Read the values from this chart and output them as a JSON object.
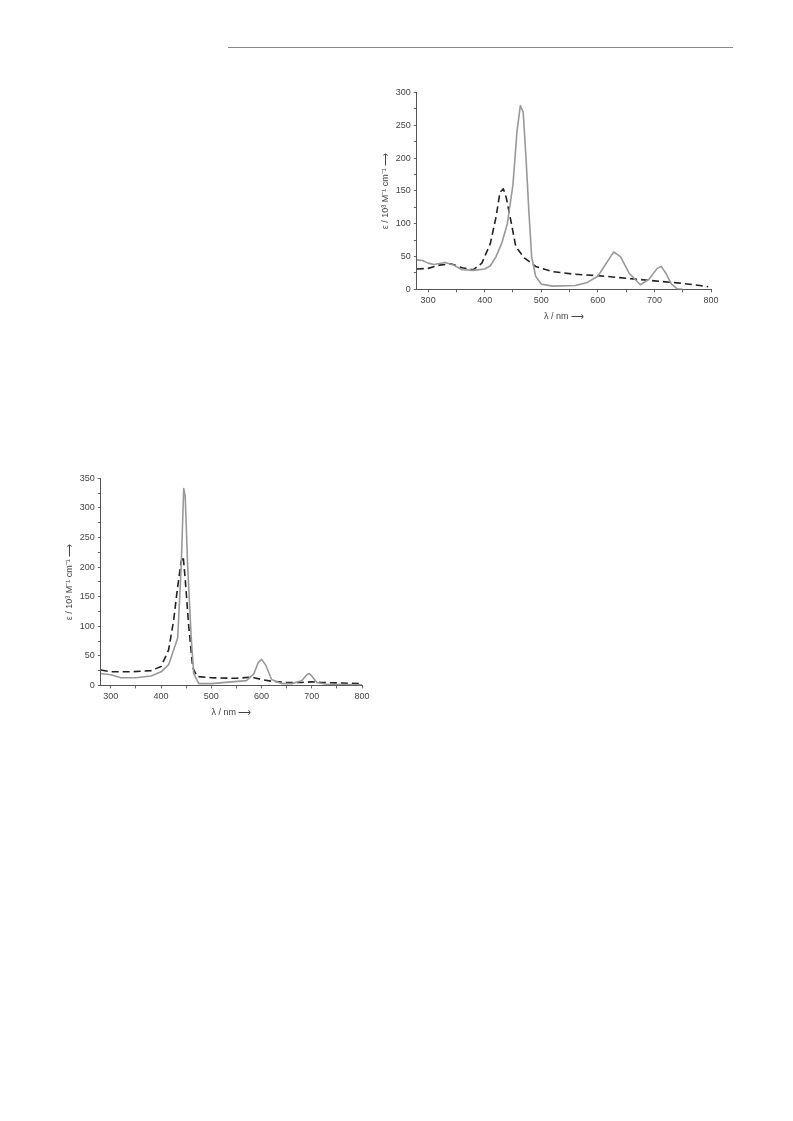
{
  "chart_data": [
    {
      "type": "line",
      "xlabel": "λ / nm ⟶",
      "ylabel": "ε / 10³ M⁻¹ cm⁻¹ ⟶",
      "xlim": [
        280,
        800
      ],
      "ylim": [
        0,
        300
      ],
      "xticks": [
        300,
        {
          "value": 350,
          "label": null
        },
        400,
        {
          "value": 450,
          "label": null
        },
        500,
        {
          "value": 550,
          "label": null
        },
        600,
        {
          "value": 650,
          "label": null
        },
        700,
        {
          "value": 750,
          "label": null
        },
        800
      ],
      "yticks": [
        0,
        {
          "value": 25,
          "label": null
        },
        50,
        {
          "value": 75,
          "label": null
        },
        100,
        {
          "value": 125,
          "label": null
        },
        150,
        {
          "value": 175,
          "label": null
        },
        200,
        {
          "value": 225,
          "label": null
        },
        250,
        {
          "value": 275,
          "label": null
        },
        300
      ],
      "grid": false,
      "legend": false,
      "marker": "none",
      "series": [
        {
          "color": "#999999",
          "line_style": "solid",
          "x": [
            280,
            290,
            300,
            310,
            330,
            345,
            360,
            380,
            400,
            410,
            420,
            430,
            440,
            450,
            457,
            463,
            468,
            473,
            478,
            483,
            490,
            500,
            520,
            560,
            580,
            600,
            615,
            628,
            640,
            655,
            675,
            690,
            705,
            712,
            720,
            730,
            740,
            750
          ],
          "values": [
            45,
            44,
            40,
            38,
            41,
            37,
            30,
            29,
            31,
            36,
            50,
            70,
            100,
            160,
            240,
            280,
            270,
            200,
            120,
            50,
            20,
            8,
            5,
            6,
            10,
            20,
            40,
            57,
            50,
            25,
            7,
            15,
            32,
            35,
            25,
            8,
            1,
            0
          ]
        },
        {
          "color": "#222222",
          "line_style": "dashed",
          "x": [
            280,
            300,
            320,
            340,
            360,
            380,
            395,
            410,
            420,
            427,
            433,
            438,
            445,
            455,
            470,
            490,
            520,
            560,
            600,
            650,
            700,
            740,
            780,
            795
          ],
          "values": [
            31,
            32,
            37,
            39,
            33,
            30,
            40,
            70,
            110,
            148,
            153,
            140,
            110,
            65,
            48,
            35,
            27,
            23,
            21,
            17,
            13,
            10,
            6,
            4
          ]
        }
      ]
    },
    {
      "type": "line",
      "xlabel": "λ / nm ⟶",
      "ylabel": "ε / 10³ M⁻¹ cm⁻¹ ⟶",
      "xlim": [
        280,
        800
      ],
      "ylim": [
        0,
        350
      ],
      "xticks": [
        300,
        {
          "value": 350,
          "label": null
        },
        400,
        {
          "value": 450,
          "label": null
        },
        500,
        {
          "value": 550,
          "label": null
        },
        600,
        {
          "value": 650,
          "label": null
        },
        700,
        {
          "value": 750,
          "label": null
        },
        800
      ],
      "yticks": [
        0,
        {
          "value": 25,
          "label": null
        },
        50,
        {
          "value": 75,
          "label": null
        },
        100,
        {
          "value": 125,
          "label": null
        },
        150,
        {
          "value": 175,
          "label": null
        },
        200,
        {
          "value": 225,
          "label": null
        },
        250,
        {
          "value": 275,
          "label": null
        },
        300,
        {
          "value": 325,
          "label": null
        },
        350
      ],
      "grid": false,
      "legend": false,
      "marker": "none",
      "series": [
        {
          "color": "#999999",
          "line_style": "solid",
          "x": [
            280,
            300,
            320,
            350,
            380,
            400,
            415,
            425,
            433,
            440,
            445,
            448,
            453,
            460,
            465,
            475,
            500,
            540,
            570,
            585,
            593,
            600,
            608,
            620,
            640,
            660,
            680,
            690,
            695,
            700,
            710,
            730,
            800
          ],
          "values": [
            20,
            18,
            13,
            13,
            16,
            23,
            35,
            60,
            80,
            200,
            333,
            320,
            200,
            80,
            20,
            3,
            3,
            6,
            8,
            20,
            38,
            44,
            35,
            10,
            3,
            3,
            8,
            18,
            20,
            16,
            5,
            2,
            1
          ]
        },
        {
          "color": "#222222",
          "line_style": "dashed",
          "x": [
            280,
            300,
            340,
            380,
            400,
            415,
            425,
            432,
            440,
            444,
            448,
            455,
            463,
            472,
            500,
            550,
            580,
            600,
            620,
            650,
            680,
            700,
            720,
            760,
            795
          ],
          "values": [
            26,
            23,
            23,
            25,
            32,
            60,
            110,
            160,
            210,
            218,
            180,
            100,
            30,
            15,
            13,
            12,
            14,
            10,
            7,
            5,
            5,
            6,
            5,
            4,
            3
          ]
        }
      ]
    }
  ]
}
